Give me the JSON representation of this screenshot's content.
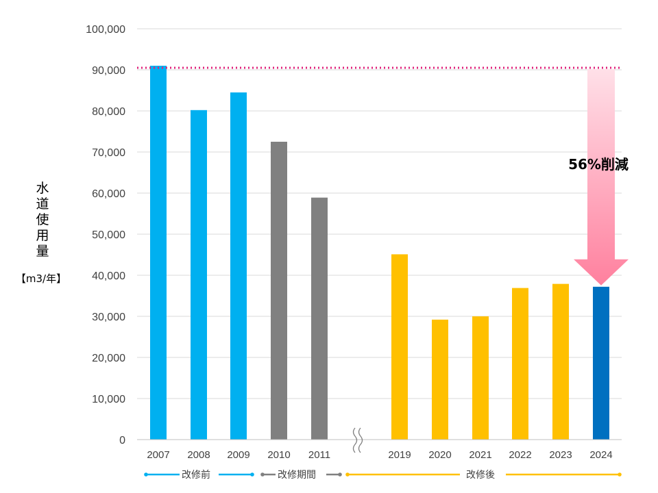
{
  "chart_data": {
    "type": "bar",
    "categories": [
      "2007",
      "2008",
      "2009",
      "2010",
      "2011",
      "2019",
      "2020",
      "2021",
      "2022",
      "2023",
      "2024"
    ],
    "values": [
      91000,
      80200,
      84500,
      72500,
      58900,
      45100,
      29200,
      30000,
      36900,
      37900,
      37200
    ],
    "period": [
      "before",
      "before",
      "before",
      "during",
      "during",
      "after",
      "after",
      "after",
      "after",
      "after",
      "latest"
    ],
    "ylabel": "水道使用量",
    "yunit": "【m3/年】",
    "ylim": [
      0,
      100000
    ],
    "yticks": [
      "0",
      "10,000",
      "20,000",
      "30,000",
      "40,000",
      "50,000",
      "60,000",
      "70,000",
      "80,000",
      "90,000",
      "100,000"
    ],
    "ytick_values": [
      0,
      10000,
      20000,
      30000,
      40000,
      50000,
      60000,
      70000,
      80000,
      90000,
      100000
    ],
    "grid": true,
    "axis_break_between": [
      "2011",
      "2019"
    ],
    "reference_line_value": 91000,
    "annotation": "56%削減",
    "colors": {
      "before": "#00B0F0",
      "during": "#808080",
      "after": "#FFC000",
      "latest": "#0070C0",
      "reference_line": "#E0207A",
      "arrow_top": "#FFE0E8",
      "arrow_bottom": "#FF809E"
    },
    "legend": [
      {
        "label": "改修前",
        "color": "#00B0F0"
      },
      {
        "label": "改修期間",
        "color": "#808080"
      },
      {
        "label": "改修後",
        "color": "#FFC000"
      }
    ]
  }
}
